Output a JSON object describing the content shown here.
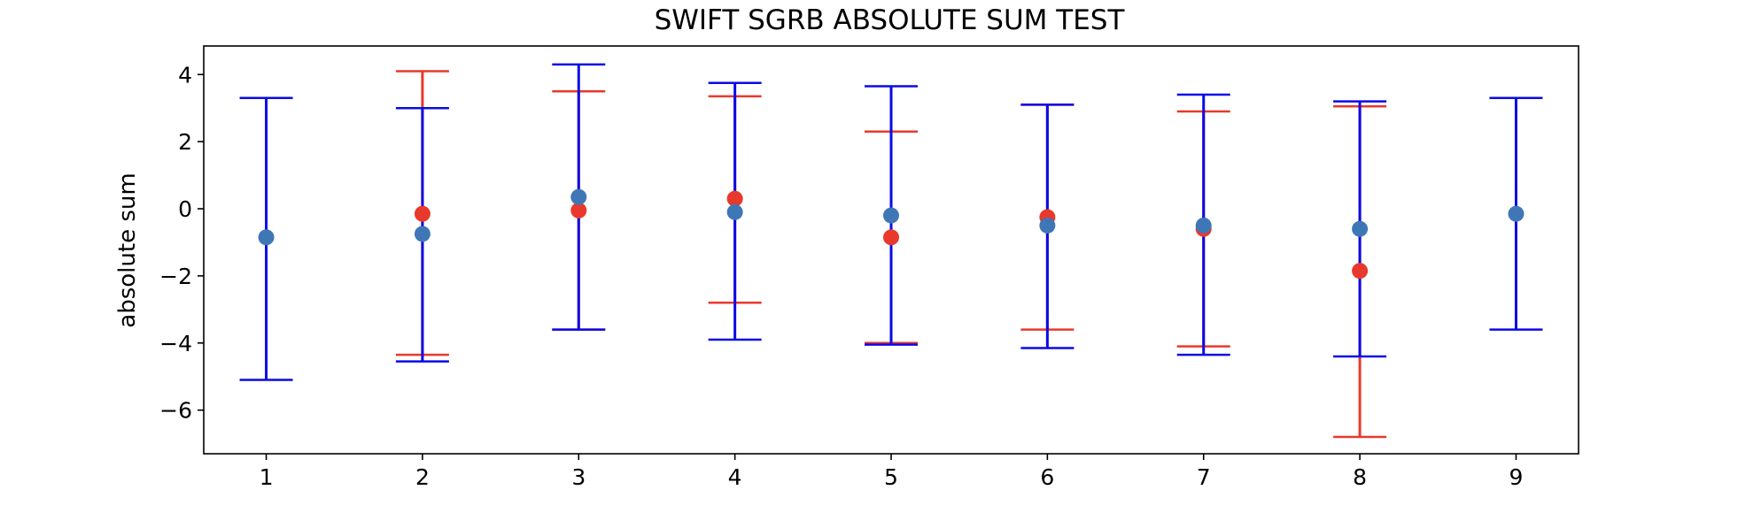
{
  "chart_data": {
    "type": "scatter",
    "title": "SWIFT SGRB ABSOLUTE SUM TEST",
    "xlabel": "",
    "ylabel": "absolute sum",
    "xlim": [
      0.6,
      9.4
    ],
    "ylim": [
      -7.3,
      4.85
    ],
    "x_ticks": [
      1,
      2,
      3,
      4,
      5,
      6,
      7,
      8,
      9
    ],
    "y_ticks": [
      -6,
      -4,
      -2,
      0,
      2,
      4
    ],
    "y_tick_labels": [
      "−6",
      "−4",
      "−2",
      "0",
      "2",
      "4"
    ],
    "grid": false,
    "legend": "none",
    "series": [
      {
        "color": "#e8392c",
        "errorbar_color": "#e8392c",
        "marker_color": "#e8392c",
        "points": [
          {
            "x": 2,
            "y": -0.15,
            "low": -4.35,
            "high": 4.1
          },
          {
            "x": 3,
            "y": -0.05,
            "low": -3.6,
            "high": 3.5
          },
          {
            "x": 4,
            "y": 0.3,
            "low": -2.8,
            "high": 3.35
          },
          {
            "x": 5,
            "y": -0.85,
            "low": -4.0,
            "high": 2.3
          },
          {
            "x": 6,
            "y": -0.25,
            "low": -3.6,
            "high": 3.1
          },
          {
            "x": 7,
            "y": -0.6,
            "low": -4.1,
            "high": 2.9
          },
          {
            "x": 8,
            "y": -1.85,
            "low": -6.8,
            "high": 3.05
          }
        ]
      },
      {
        "color": "#3f77b6",
        "errorbar_color": "#0a0ae6",
        "marker_color": "#3f77b6",
        "points": [
          {
            "x": 1,
            "y": -0.85,
            "low": -5.1,
            "high": 3.3
          },
          {
            "x": 2,
            "y": -0.75,
            "low": -4.55,
            "high": 3.0
          },
          {
            "x": 3,
            "y": 0.35,
            "low": -3.6,
            "high": 4.3
          },
          {
            "x": 4,
            "y": -0.1,
            "low": -3.9,
            "high": 3.75
          },
          {
            "x": 5,
            "y": -0.2,
            "low": -4.05,
            "high": 3.65
          },
          {
            "x": 6,
            "y": -0.5,
            "low": -4.15,
            "high": 3.1
          },
          {
            "x": 7,
            "y": -0.5,
            "low": -4.35,
            "high": 3.4
          },
          {
            "x": 8,
            "y": -0.6,
            "low": -4.4,
            "high": 3.2
          },
          {
            "x": 9,
            "y": -0.15,
            "low": -3.6,
            "high": 3.3
          }
        ]
      }
    ]
  }
}
